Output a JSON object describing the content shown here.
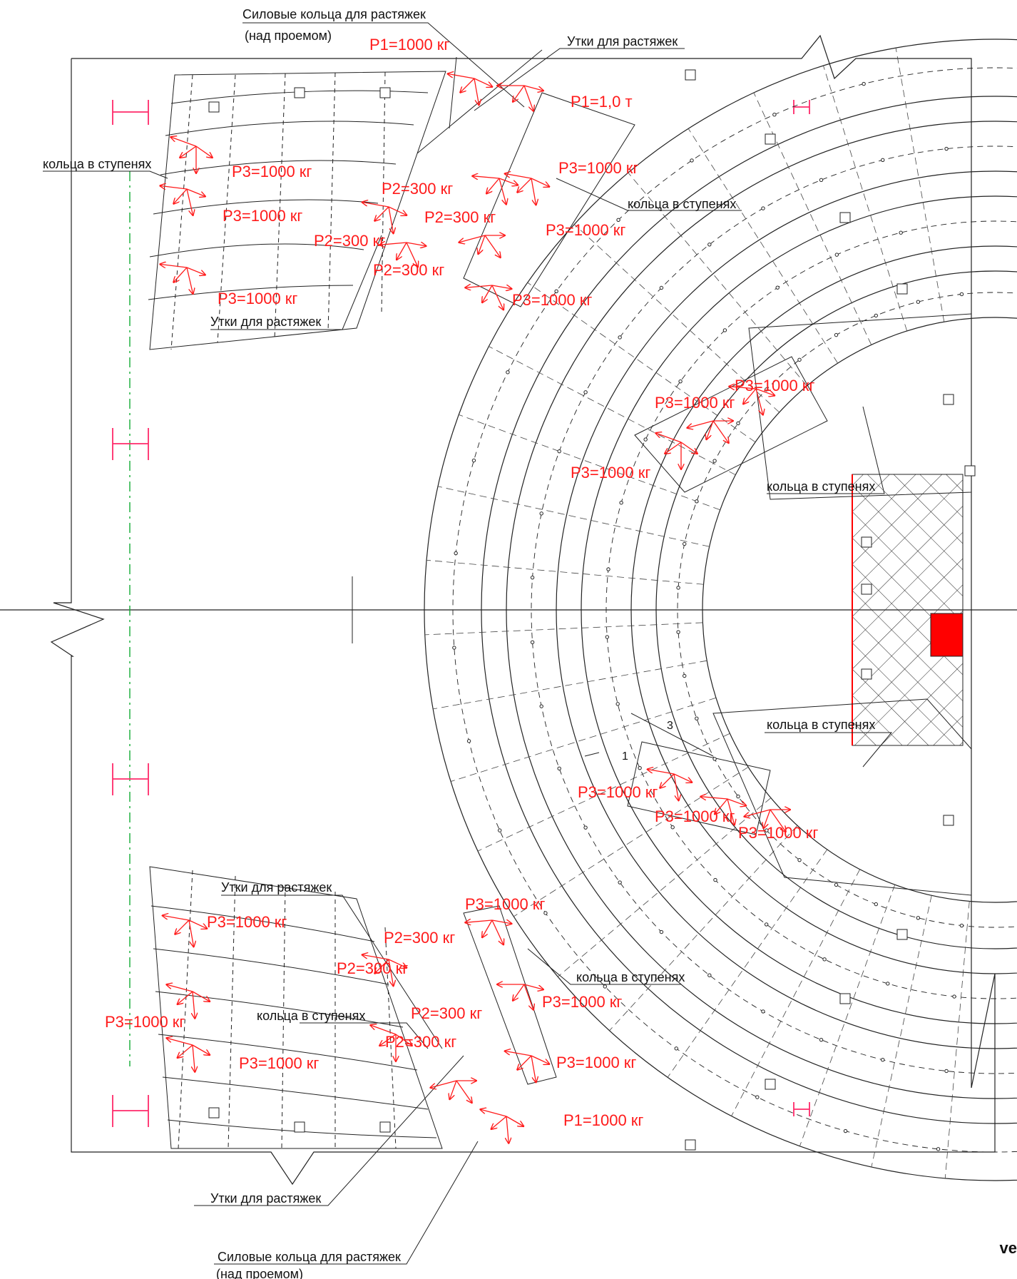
{
  "colors": {
    "ink": "#111111",
    "load": "#ff1a1a",
    "axis": "#11aa33",
    "marker": "#ff2a6a",
    "highlight": "#ff0000"
  },
  "labels": {
    "power_rings_top": "Силовые кольца для растяжек",
    "over_opening_top": "(над проемом)",
    "cleats_top": "Утки для растяжек",
    "rings_in_steps_left": "кольца в ступенях",
    "rings_in_steps_right": "кольца в ступенях",
    "cleats_left_upper": "Утки для растяжек",
    "rings_in_steps_mid": "кольца в ступенях",
    "rings_in_steps_center": "кольца в ступенях",
    "cleats_left_lower": "Утки для растяжек",
    "rings_in_steps_right_lower": "кольца в ступенях",
    "rings_in_steps_left_lower": "кольца в ступенях",
    "cleats_bottom": "Утки для растяжек",
    "power_rings_bottom": "Силовые кольца для растяжек",
    "over_opening_bottom": "(над проемом)",
    "section_mark": "3",
    "section_mark_2": "1"
  },
  "loads": {
    "p1_top_left": "P1=1000 кг",
    "p1_top_right": "P1=1,0 т",
    "p3_ul_1": "P3=1000 кг",
    "p3_ul_2": "P3=1000 кг",
    "p3_ul_3": "P3=1000 кг",
    "p2_ul_1": "P2=300 кг",
    "p2_ul_2": "P2=300 кг",
    "p2_ur_1": "P2=300 кг",
    "p2_ur_2": "P2=300 кг",
    "p3_ur_1": "P3=1000 кг",
    "p3_ur_2": "P3=1000 кг",
    "p3_ur_3": "P3=1000 кг",
    "p3_mid_1": "P3=1000 кг",
    "p3_mid_2": "P3=1000 кг",
    "p3_mid_3": "P3=1000 кг",
    "p3_low_1": "P3=1000 кг",
    "p3_low_2": "P3=1000 кг",
    "p3_low_3": "P3=1000 кг",
    "p3_lr_1": "P3=1000 кг",
    "p2_lr_1": "P2=300 кг",
    "p2_lr_2": "P2=300 кг",
    "p3_lr_2": "P3=1000 кг",
    "p3_lr_3": "P3=1000 кг",
    "p3_ll_1": "P3=1000 кг",
    "p3_ll_2": "P3=1000 кг",
    "p3_ll_3": "P3=1000 кг",
    "p2_ll_1": "P2=300 кг",
    "p2_ll_2": "P2=300 кг",
    "p1_bottom": "P1=1000 кг"
  },
  "corner_text": "ve"
}
